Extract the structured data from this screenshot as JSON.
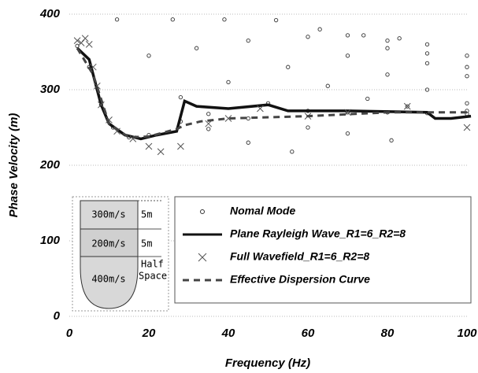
{
  "chart_data": {
    "type": "dispersion",
    "x_label": "Frequency (Hz)",
    "y_label": "Phase Velocity (m)",
    "xlim": [
      0,
      100
    ],
    "ylim": [
      0,
      400
    ],
    "xticks": [
      0,
      20,
      40,
      60,
      80,
      100
    ],
    "yticks": [
      0,
      100,
      200,
      300,
      400
    ],
    "grid": true,
    "legend": "lower right",
    "series": [
      {
        "name": "Nomal Mode",
        "style": "circle",
        "color": "#333333",
        "x": [
          2,
          5,
          8,
          11,
          15,
          20,
          null,
          28,
          35,
          45,
          56,
          null,
          12,
          20,
          28,
          35,
          45,
          60,
          70,
          81,
          null,
          26,
          32,
          40,
          50,
          60,
          70,
          80,
          90,
          100,
          null,
          39,
          45,
          55,
          65,
          75,
          85,
          100,
          null,
          52,
          60,
          70,
          80,
          90,
          100,
          null,
          63,
          70,
          80,
          90,
          100,
          null,
          74,
          80,
          90,
          100,
          null,
          83,
          90,
          100
        ],
        "values": [
          358,
          330,
          280,
          250,
          237,
          240,
          null,
          258,
          248,
          230,
          218,
          null,
          393,
          345,
          290,
          268,
          262,
          250,
          242,
          233,
          null,
          393,
          355,
          310,
          282,
          272,
          270,
          270,
          269,
          268,
          null,
          393,
          365,
          330,
          305,
          288,
          278,
          272,
          null,
          392,
          370,
          345,
          320,
          300,
          282,
          null,
          380,
          372,
          355,
          335,
          318,
          null,
          372,
          365,
          348,
          330,
          null,
          368,
          360,
          345
        ]
      },
      {
        "name": "Plane Rayleigh Wave_R1=6_R2=8",
        "style": "line",
        "color": "#111111",
        "x": [
          2,
          5,
          8,
          10,
          14,
          18,
          22,
          27,
          29,
          32,
          40,
          50,
          55,
          70,
          90,
          92,
          96,
          101
        ],
        "values": [
          355,
          340,
          280,
          255,
          240,
          235,
          240,
          245,
          285,
          278,
          275,
          280,
          272,
          272,
          270,
          262,
          262,
          265
        ]
      },
      {
        "name": "Full Wavefield_R1=6_R2=8",
        "style": "cross",
        "color": "#555555",
        "x": [
          2,
          3,
          4,
          5,
          6,
          7,
          8,
          10,
          12,
          16,
          20,
          23,
          28,
          35,
          40,
          48,
          60,
          70,
          85,
          100
        ],
        "values": [
          365,
          362,
          368,
          360,
          330,
          305,
          280,
          260,
          245,
          235,
          225,
          218,
          225,
          255,
          262,
          275,
          265,
          270,
          278,
          250
        ]
      },
      {
        "name": "Effective Dispersion Curve",
        "style": "dashed",
        "color": "#444444",
        "x": [
          2,
          6,
          10,
          15,
          20,
          27,
          29,
          33,
          40,
          60,
          80,
          100
        ],
        "values": [
          355,
          320,
          255,
          237,
          238,
          248,
          253,
          258,
          262,
          265,
          270,
          270
        ]
      }
    ]
  },
  "inset": {
    "layer1_speed": "300m/s",
    "layer1_thickness": "5m",
    "layer2_speed": "200m/s",
    "layer2_thickness": "5m",
    "half_line1": "Half",
    "half_line2": "Space",
    "halfspace_speed": "400m/s"
  }
}
